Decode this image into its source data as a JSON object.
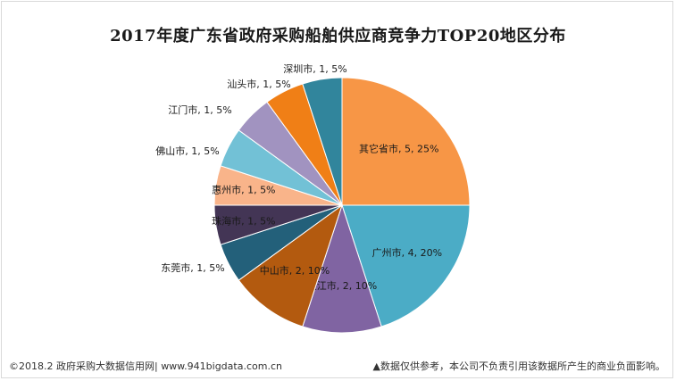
{
  "title": "2017年度广东省政府采购船舶供应商竞争力TOP20地区分布",
  "footer": {
    "left": "©2018.2 政府采购大数据信用网| www.941bigdata.com.cn",
    "right": "▲数据仅供参考，本公司不负责引用该数据所产生的商业负面影响。"
  },
  "chart_data": {
    "type": "pie",
    "title": "2017年度广东省政府采购船舶供应商竞争力TOP20地区分布",
    "slices": [
      {
        "name": "其它省市",
        "value": 5,
        "percent": "25%",
        "label": "其它省市, 5, 25%",
        "color": "#f79646",
        "label_pos": "inside"
      },
      {
        "name": "广州市",
        "value": 4,
        "percent": "20%",
        "label": "广州市, 4, 20%",
        "color": "#4bacc6",
        "label_pos": "inside"
      },
      {
        "name": "湛江市",
        "value": 2,
        "percent": "10%",
        "label": "湛江市, 2, 10%",
        "color": "#8064a2",
        "label_pos": "inside"
      },
      {
        "name": "中山市",
        "value": 2,
        "percent": "10%",
        "label": "中山市, 2, 10%",
        "color": "#b35a0f",
        "label_pos": "inside"
      },
      {
        "name": "东莞市",
        "value": 1,
        "percent": "5%",
        "label": "东莞市, 1, 5%",
        "color": "#23607a",
        "label_pos": "outside"
      },
      {
        "name": "珠海市",
        "value": 1,
        "percent": "5%",
        "label": "珠海市, 1, 5%",
        "color": "#433555",
        "label_pos": "inside"
      },
      {
        "name": "惠州市",
        "value": 1,
        "percent": "5%",
        "label": "惠州市, 1, 5%",
        "color": "#f9b48a",
        "label_pos": "inside"
      },
      {
        "name": "佛山市",
        "value": 1,
        "percent": "5%",
        "label": "佛山市, 1, 5%",
        "color": "#72c1d6",
        "label_pos": "outside"
      },
      {
        "name": "江门市",
        "value": 1,
        "percent": "5%",
        "label": "江门市, 1, 5%",
        "color": "#a193c0",
        "label_pos": "outside"
      },
      {
        "name": "汕头市",
        "value": 1,
        "percent": "5%",
        "label": "汕头市, 1, 5%",
        "color": "#f07f16",
        "label_pos": "outside"
      },
      {
        "name": "深圳市",
        "value": 1,
        "percent": "5%",
        "label": "深圳市, 1, 5%",
        "color": "#31859c",
        "label_pos": "outside"
      }
    ]
  }
}
